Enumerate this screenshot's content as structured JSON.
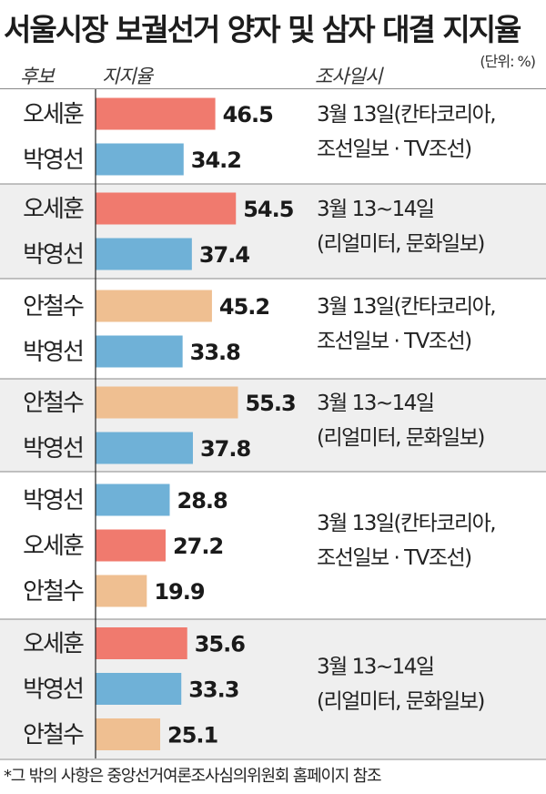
{
  "title": "서울시장 보궐선거 양자 및 삼자 대결 지지율",
  "unit": "(단위: %)",
  "headers": {
    "candidate": "후보",
    "rate": "지지율",
    "date": "조사일시"
  },
  "footnote": "*그 밖의 사항은 중앙선거여론조사심의위원회 홈페이지 참조",
  "colors": {
    "오세훈": "#f07a6e",
    "박영선": "#6fb1d7",
    "안철수": "#efbf91",
    "shade": "#efefef",
    "divider": "#8a8a8a"
  },
  "chart_data": {
    "type": "bar",
    "orientation": "horizontal",
    "title": "서울시장 보궐선거 양자 및 삼자 대결 지지율",
    "unit": "%",
    "groups": [
      {
        "survey": [
          "3월 13일(칸타코리아,",
          "조선일보 · TV조선)"
        ],
        "bars": [
          {
            "candidate": "오세훈",
            "value": 46.5
          },
          {
            "candidate": "박영선",
            "value": 34.2
          }
        ]
      },
      {
        "survey": [
          "3월 13~14일",
          "(리얼미터, 문화일보)"
        ],
        "bars": [
          {
            "candidate": "오세훈",
            "value": 54.5
          },
          {
            "candidate": "박영선",
            "value": 37.4
          }
        ]
      },
      {
        "survey": [
          "3월 13일(칸타코리아,",
          "조선일보 · TV조선)"
        ],
        "bars": [
          {
            "candidate": "안철수",
            "value": 45.2
          },
          {
            "candidate": "박영선",
            "value": 33.8
          }
        ]
      },
      {
        "survey": [
          "3월 13~14일",
          "(리얼미터, 문화일보)"
        ],
        "bars": [
          {
            "candidate": "안철수",
            "value": 55.3
          },
          {
            "candidate": "박영선",
            "value": 37.8
          }
        ]
      },
      {
        "survey": [
          "3월 13일(칸타코리아,",
          "조선일보 · TV조선)"
        ],
        "bars": [
          {
            "candidate": "박영선",
            "value": 28.8
          },
          {
            "candidate": "오세훈",
            "value": 27.2
          },
          {
            "candidate": "안철수",
            "value": 19.9
          }
        ]
      },
      {
        "survey": [
          "3월 13~14일",
          "(리얼미터, 문화일보)"
        ],
        "bars": [
          {
            "candidate": "오세훈",
            "value": 35.6
          },
          {
            "candidate": "박영선",
            "value": 33.3
          },
          {
            "candidate": "안철수",
            "value": 25.1
          }
        ]
      }
    ]
  }
}
